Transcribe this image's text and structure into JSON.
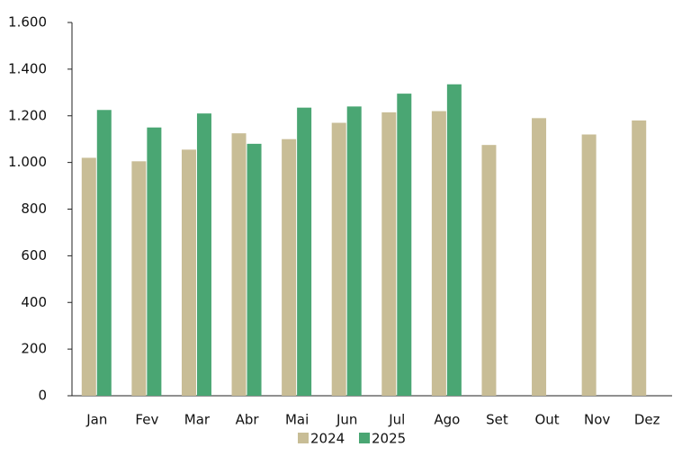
{
  "chart_data": {
    "type": "bar",
    "categories": [
      "Jan",
      "Fev",
      "Mar",
      "Abr",
      "Mai",
      "Jun",
      "Jul",
      "Ago",
      "Set",
      "Out",
      "Nov",
      "Dez"
    ],
    "series": [
      {
        "name": "2024",
        "color": "#c8bd96",
        "values": [
          1020,
          1005,
          1055,
          1125,
          1100,
          1170,
          1215,
          1220,
          1075,
          1190,
          1120,
          1180
        ]
      },
      {
        "name": "2025",
        "color": "#4aa673",
        "values": [
          1225,
          1150,
          1210,
          1080,
          1235,
          1240,
          1295,
          1335,
          null,
          null,
          null,
          null
        ]
      }
    ],
    "ylim": [
      0,
      1600
    ],
    "yticks": [
      0,
      200,
      400,
      600,
      800,
      {
        "value": 1000,
        "label": "1.000"
      },
      {
        "value": 1200,
        "label": "1.200"
      },
      {
        "value": 1400,
        "label": "1.400"
      },
      {
        "value": 1600,
        "label": "1.600"
      }
    ],
    "grid": false,
    "legend": "bottom"
  }
}
